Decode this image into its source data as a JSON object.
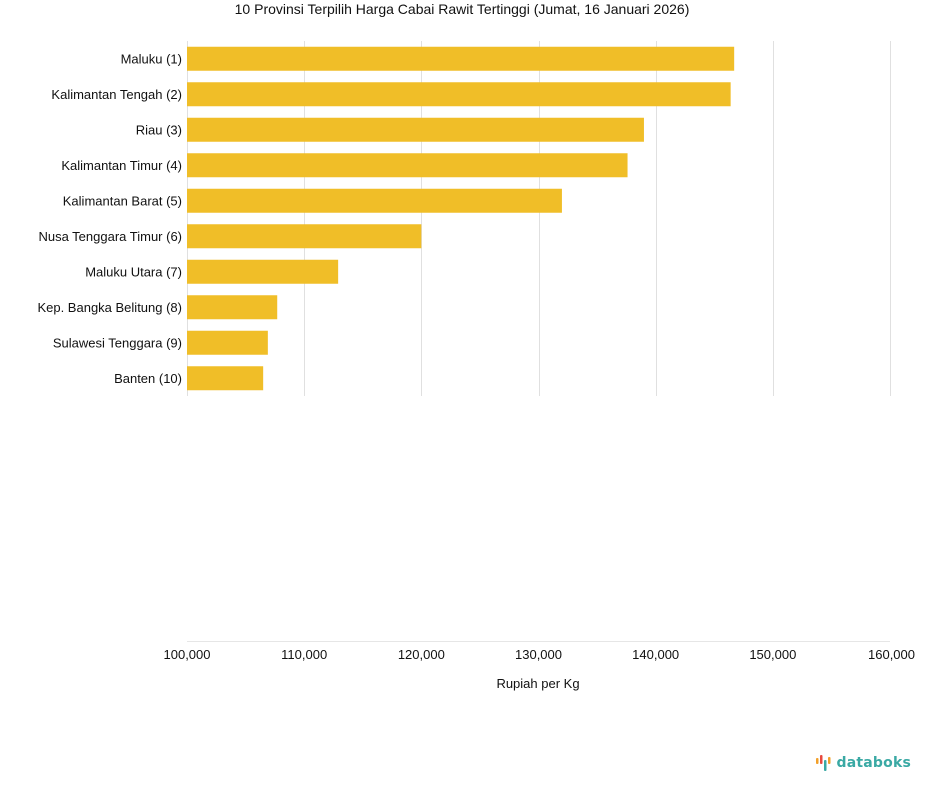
{
  "chart_data": {
    "type": "bar",
    "orientation": "horizontal",
    "title": "10 Provinsi Terpilih Harga Cabai Rawit Tertinggi (Jumat, 16 Januari 2026)",
    "xlabel": "Rupiah per Kg",
    "ylabel": "",
    "categories": [
      "Maluku (1)",
      "Kalimantan Tengah (2)",
      "Riau (3)",
      "Kalimantan Timur (4)",
      "Kalimantan Barat (5)",
      "Nusa Tenggara Timur (6)",
      "Maluku Utara (7)",
      "Kep. Bangka Belitung (8)",
      "Sulawesi Tenggara (9)",
      "Banten (10)"
    ],
    "values": [
      146700,
      146400,
      139000,
      137600,
      132000,
      120000,
      112900,
      107700,
      106900,
      106500
    ],
    "xlim": [
      100000,
      160000
    ],
    "xticks": [
      100000,
      110000,
      120000,
      130000,
      140000,
      150000,
      160000
    ],
    "xtick_labels": [
      "100,000",
      "110,000",
      "120,000",
      "130,000",
      "140,000",
      "150,000",
      "160,000"
    ],
    "grid": true,
    "bar_color": "#f0be28"
  },
  "brand": {
    "name": "databoks",
    "text_color": "#3aa9a4",
    "icon_colors": [
      "#f2a02a",
      "#e8493f",
      "#3aa9a4"
    ],
    "icon": "databoks-logo-icon"
  }
}
